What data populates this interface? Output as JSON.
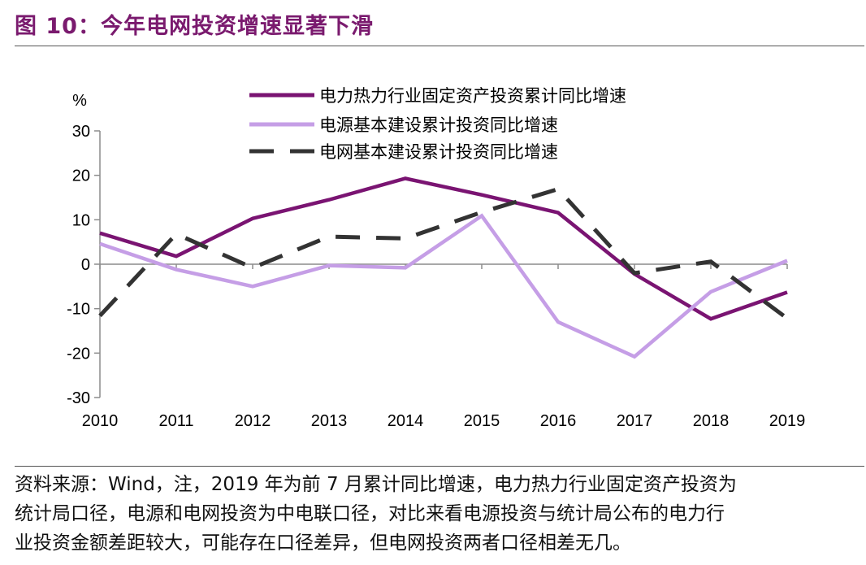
{
  "title": "图 10：今年电网投资增速显著下滑",
  "chart_data": {
    "type": "line",
    "ylabel": "%",
    "xlabel": "",
    "categories": [
      "2010",
      "2011",
      "2012",
      "2013",
      "2014",
      "2015",
      "2016",
      "2017",
      "2018",
      "2019"
    ],
    "ylim": [
      -30,
      30
    ],
    "yticks": [
      -30,
      -20,
      -10,
      0,
      10,
      20,
      30
    ],
    "grid": false,
    "legend_position": "top",
    "series": [
      {
        "name": "电力热力行业固定资产投资累计同比增速",
        "color": "#7a1472",
        "style": "solid",
        "values": [
          7.0,
          1.8,
          10.3,
          14.5,
          19.3,
          15.6,
          11.6,
          -2.2,
          -12.3,
          -6.3
        ]
      },
      {
        "name": "电源基本建设累计投资同比增速",
        "color": "#c59ee6",
        "style": "solid",
        "values": [
          4.6,
          -1.2,
          -5.0,
          -0.3,
          -0.8,
          10.9,
          -13.0,
          -20.8,
          -6.2,
          0.8
        ]
      },
      {
        "name": "电网基本建设累计投资同比增速",
        "color": "#333333",
        "style": "dashed",
        "values": [
          -11.6,
          6.8,
          -0.8,
          6.2,
          5.8,
          11.7,
          16.9,
          -2.0,
          0.6,
          -12.2
        ]
      }
    ]
  },
  "source_text": [
    "资料来源：Wind，注，2019 年为前 7 月累计同比增速，电力热力行业固定资产投资为",
    "统计局口径，电源和电网投资为中电联口径，对比来看电源投资与统计局公布的电力行",
    "业投资金额差距较大，可能存在口径差异，但电网投资两者口径相差无几。"
  ]
}
